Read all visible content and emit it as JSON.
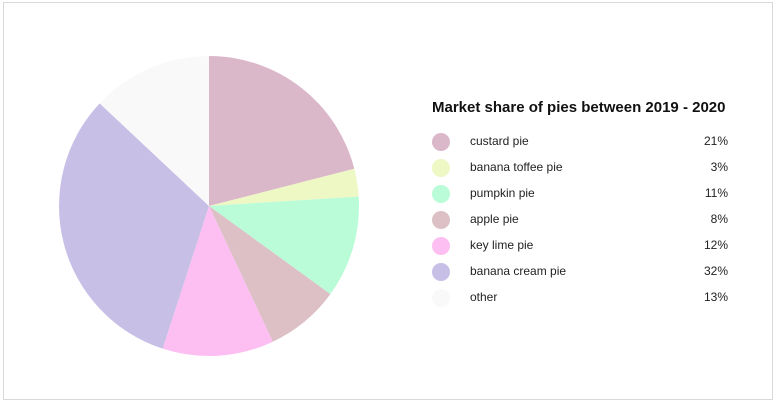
{
  "chart_data": {
    "type": "pie",
    "title": "Market share of pies between 2019 - 2020",
    "categories": [
      "custard pie",
      "banana toffee pie",
      "pumpkin pie",
      "apple pie",
      "key lime pie",
      "banana cream pie",
      "other"
    ],
    "values": [
      21,
      3,
      11,
      8,
      12,
      32,
      13
    ],
    "value_labels": [
      "21%",
      "3%",
      "11%",
      "8%",
      "12%",
      "32%",
      "13%"
    ],
    "colors": [
      "#dbb8c9",
      "#eef8c5",
      "#bafcd7",
      "#dcc0c6",
      "#fdbef2",
      "#c8bfe7",
      "#f9f9f9"
    ],
    "legend_position": "right"
  }
}
